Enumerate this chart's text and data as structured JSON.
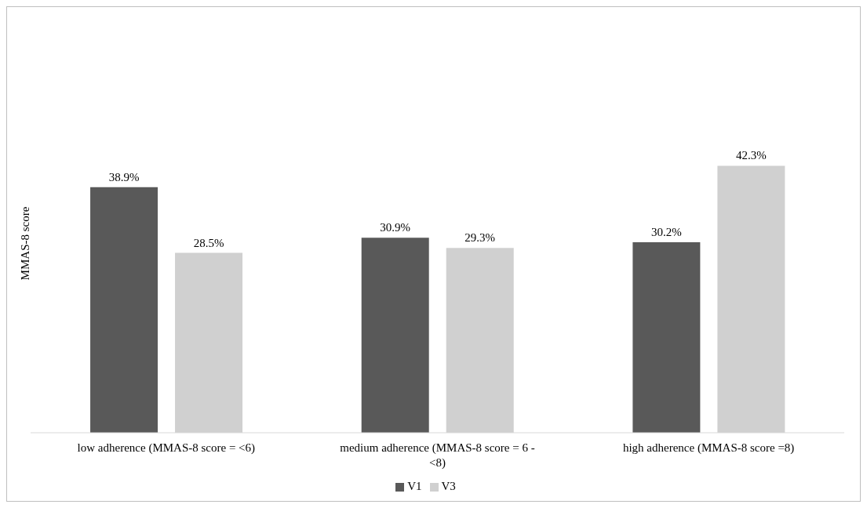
{
  "chart_data": {
    "type": "bar",
    "ylabel": "MMAS-8 score",
    "categories": [
      "low adherence (MMAS-8 score = <6)",
      "medium adherence (MMAS-8 score = 6 - <8)",
      "high adherence (MMAS-8 score =8)"
    ],
    "series": [
      {
        "name": "V1",
        "color": "#595959",
        "values": [
          38.9,
          30.9,
          30.2
        ],
        "value_labels": [
          "38.9%",
          "30.9%",
          "30.2%"
        ]
      },
      {
        "name": "V3",
        "color": "#d0d0d0",
        "values": [
          28.5,
          29.3,
          42.3
        ],
        "value_labels": [
          "28.5%",
          "29.3%",
          "42.3%"
        ]
      }
    ],
    "tick_labels": "x",
    "legend": "bottom"
  }
}
